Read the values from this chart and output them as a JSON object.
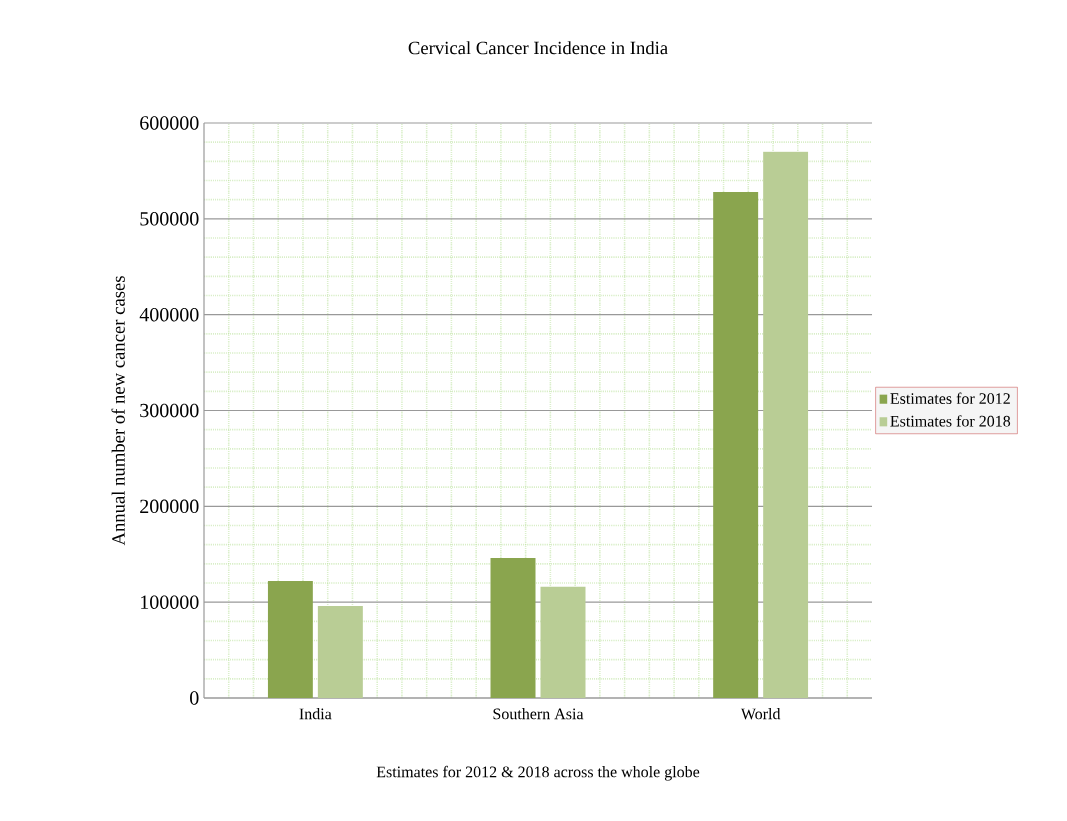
{
  "chart_data": {
    "type": "bar",
    "title": "Cervical Cancer Incidence in India",
    "xlabel": "Estimates for 2012 & 2018 across the whole globe",
    "ylabel": "Annual  number of new cancer cases",
    "categories": [
      "India",
      "Southern Asia",
      "World"
    ],
    "series": [
      {
        "name": "Estimates for 2012",
        "color": "#8aa54e",
        "values": [
          122000,
          146000,
          528000
        ]
      },
      {
        "name": "Estimates for 2018",
        "color": "#b9cd95",
        "values": [
          96000,
          116000,
          570000
        ]
      }
    ],
    "ylim": [
      0,
      600000
    ],
    "yticks": [
      0,
      100000,
      200000,
      300000,
      400000,
      500000,
      600000
    ],
    "grid": true,
    "legend": "right"
  }
}
